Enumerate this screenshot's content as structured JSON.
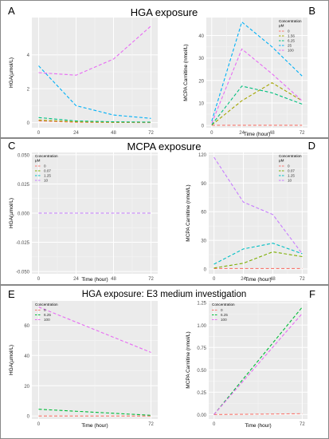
{
  "sections": [
    {
      "title": "HGA exposure"
    },
    {
      "title": "MCPA exposure"
    },
    {
      "title": "HGA exposure: E3 medium investigation"
    }
  ],
  "chart_data": [
    {
      "panel": "A",
      "type": "line",
      "xlabel": "",
      "ylabel": "HGA(µmol/L)",
      "x": [
        0,
        24,
        48,
        72
      ],
      "xticks": [
        "0",
        "24",
        "48",
        "72"
      ],
      "ylim": [
        -0.3,
        6.2
      ],
      "yticks": [
        0,
        2,
        4
      ],
      "legend": {
        "title": "Concentration\nµM",
        "placement": "top-right",
        "show": false
      },
      "series": [
        {
          "name": "0",
          "color": "#F8766D",
          "values": [
            0.1,
            0.02,
            0.01,
            0.0
          ]
        },
        {
          "name": "1.56",
          "color": "#A3A500",
          "values": [
            0.15,
            0.05,
            0.02,
            0.02
          ]
        },
        {
          "name": "6.25",
          "color": "#00BF7D",
          "values": [
            0.3,
            0.1,
            0.05,
            0.03
          ]
        },
        {
          "name": "25",
          "color": "#00B0F6",
          "values": [
            3.35,
            1.0,
            0.45,
            0.25
          ]
        },
        {
          "name": "100",
          "color": "#E76BF3",
          "values": [
            2.95,
            2.8,
            3.75,
            5.7
          ]
        }
      ]
    },
    {
      "panel": "B",
      "type": "line",
      "xlabel": "Time (hour)",
      "ylabel": "MCPA Carnitine (nmol/L)",
      "x": [
        0,
        24,
        48,
        72
      ],
      "xticks": [
        "0",
        "24",
        "48",
        "72"
      ],
      "ylim": [
        -1,
        48
      ],
      "yticks": [
        0,
        10,
        20,
        30,
        40
      ],
      "legend": {
        "title": "Concentration\nµM",
        "placement": "top-right",
        "show": true
      },
      "series": [
        {
          "name": "0",
          "color": "#F8766D",
          "values": [
            0.1,
            0.1,
            0.1,
            0.1
          ]
        },
        {
          "name": "1.56",
          "color": "#A3A500",
          "values": [
            0.2,
            11,
            19,
            11
          ]
        },
        {
          "name": "6.25",
          "color": "#00BF7D",
          "values": [
            0.3,
            17.5,
            14.5,
            9.5
          ]
        },
        {
          "name": "25",
          "color": "#00B0F6",
          "values": [
            2,
            46,
            35,
            22
          ]
        },
        {
          "name": "100",
          "color": "#E76BF3",
          "values": [
            1,
            34,
            23,
            11
          ]
        }
      ]
    },
    {
      "panel": "C",
      "type": "line",
      "xlabel": "Time (hour)",
      "ylabel": "HGA(µmol/L)",
      "x": [
        0,
        24,
        48,
        72
      ],
      "xticks": [
        "0",
        "24",
        "48",
        "72"
      ],
      "ylim": [
        -0.052,
        0.052
      ],
      "yticks": [
        -0.05,
        -0.025,
        0.0,
        0.025,
        0.05
      ],
      "ytick_labels": [
        "-0.050",
        "-0.025",
        "0.000",
        "0.025",
        "0.050"
      ],
      "legend": {
        "title": "Concentration\nµM",
        "placement": "top-left",
        "show": true
      },
      "series": [
        {
          "name": "0",
          "color": "#F8766D",
          "values": [
            0,
            0,
            0,
            0
          ]
        },
        {
          "name": "0.07",
          "color": "#7CAE00",
          "values": [
            0,
            0,
            0,
            0
          ]
        },
        {
          "name": "1.25",
          "color": "#00BFC4",
          "values": [
            0,
            0,
            0,
            0
          ]
        },
        {
          "name": "10",
          "color": "#C77CFF",
          "values": [
            0,
            0,
            0,
            0
          ]
        }
      ]
    },
    {
      "panel": "D",
      "type": "line",
      "xlabel": "Time (hour)",
      "ylabel": "MCPA Carnitine (nmol/L)",
      "x": [
        0,
        24,
        48,
        72
      ],
      "xticks": [
        "0",
        "24",
        "48",
        "72"
      ],
      "ylim": [
        -5,
        122
      ],
      "yticks": [
        0,
        30,
        60,
        90,
        120
      ],
      "legend": {
        "title": "Concentration\nµM",
        "placement": "top-right",
        "show": true
      },
      "series": [
        {
          "name": "0",
          "color": "#F8766D",
          "values": [
            0.5,
            0.5,
            0.5,
            0.5
          ]
        },
        {
          "name": "0.07",
          "color": "#7CAE00",
          "values": [
            1,
            6,
            18,
            13
          ]
        },
        {
          "name": "1.25",
          "color": "#00BFC4",
          "values": [
            5,
            21,
            27,
            16
          ]
        },
        {
          "name": "10",
          "color": "#C77CFF",
          "values": [
            117,
            70,
            57,
            16
          ]
        }
      ]
    },
    {
      "panel": "E",
      "type": "line",
      "xlabel": "Time (hour)",
      "ylabel": "HGA(µmol/L)",
      "x": [
        0,
        72
      ],
      "xticks": [
        "0",
        "72"
      ],
      "ylim": [
        -2,
        76
      ],
      "yticks": [
        0,
        20,
        40,
        60
      ],
      "legend": {
        "title": "Concentration",
        "placement": "top-left",
        "show": true
      },
      "series": [
        {
          "name": "0",
          "color": "#F8766D",
          "values": [
            0,
            0
          ]
        },
        {
          "name": "6.25",
          "color": "#00BA38",
          "values": [
            4.5,
            0.5
          ]
        },
        {
          "name": "100",
          "color": "#E76BF3",
          "values": [
            72,
            42
          ]
        }
      ]
    },
    {
      "panel": "F",
      "type": "line",
      "xlabel": "Time (hour)",
      "ylabel": "MCPA Carnitine (nmol/L)",
      "x": [
        0,
        72
      ],
      "xticks": [
        "0",
        "72"
      ],
      "ylim": [
        -0.05,
        1.27
      ],
      "yticks": [
        0,
        0.25,
        0.5,
        0.75,
        1.0,
        1.25
      ],
      "ytick_labels": [
        "0.00",
        "0.25",
        "0.50",
        "0.75",
        "1.00",
        "1.25"
      ],
      "legend": {
        "title": "Concentration",
        "placement": "top-left",
        "show": true
      },
      "series": [
        {
          "name": "0",
          "color": "#F8766D",
          "values": [
            0,
            0.01
          ]
        },
        {
          "name": "6.25",
          "color": "#00BA38",
          "values": [
            0,
            1.2
          ]
        },
        {
          "name": "100",
          "color": "#E76BF3",
          "values": [
            0,
            1.13
          ]
        }
      ]
    }
  ]
}
